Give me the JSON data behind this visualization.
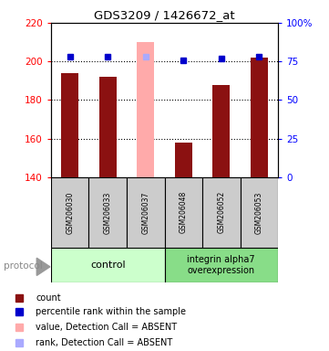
{
  "title": "GDS3209 / 1426672_at",
  "samples": [
    "GSM206030",
    "GSM206033",
    "GSM206037",
    "GSM206048",
    "GSM206052",
    "GSM206053"
  ],
  "bar_values": [
    194,
    192,
    210,
    158,
    188,
    202
  ],
  "bar_colors": [
    "#8b1111",
    "#8b1111",
    "#ffaaaa",
    "#8b1111",
    "#8b1111",
    "#8b1111"
  ],
  "bar_absent": [
    false,
    false,
    true,
    false,
    false,
    false
  ],
  "percentile_values": [
    78,
    78,
    78,
    76,
    77,
    78
  ],
  "percentile_absent": [
    false,
    false,
    true,
    false,
    false,
    false
  ],
  "percentile_color": "#0000cc",
  "percentile_absent_color": "#aaaaff",
  "ylim_left": [
    140,
    220
  ],
  "ylim_right": [
    0,
    100
  ],
  "yticks_left": [
    140,
    160,
    180,
    200,
    220
  ],
  "yticks_right": [
    0,
    25,
    50,
    75,
    100
  ],
  "ytick_labels_right": [
    "0",
    "25",
    "50",
    "75",
    "100%"
  ],
  "group1_label": "control",
  "group1_color": "#ccffcc",
  "group2_label": "integrin alpha7\noverexpression",
  "group2_color": "#88dd88",
  "protocol_label": "protocol",
  "legend_items": [
    {
      "color": "#8b1111",
      "label": "count"
    },
    {
      "color": "#0000cc",
      "label": "percentile rank within the sample"
    },
    {
      "color": "#ffaaaa",
      "label": "value, Detection Call = ABSENT"
    },
    {
      "color": "#aaaaff",
      "label": "rank, Detection Call = ABSENT"
    }
  ]
}
